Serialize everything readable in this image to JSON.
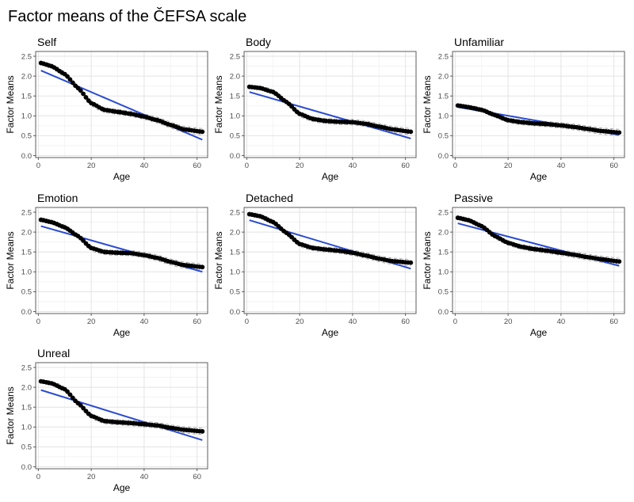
{
  "figure_title": "Factor means of the ČEFSA scale",
  "colors": {
    "trend": "#2a4bd1",
    "points": "#000000",
    "ci": "#a8a8a8",
    "grid": "#e3e3e3"
  },
  "chart_data": [
    {
      "type": "scatter",
      "title": "Self",
      "xlabel": "Age",
      "ylabel": "Factor Means",
      "xlim": [
        -1,
        64
      ],
      "ylim": [
        -0.05,
        2.62
      ],
      "xticks": [
        "0",
        "20",
        "40",
        "60"
      ],
      "yticks": [
        "0.0",
        "0.5",
        "1.0",
        "1.5",
        "2.0",
        "2.5"
      ],
      "x": [
        1,
        5,
        10,
        15,
        20,
        25,
        30,
        35,
        40,
        45,
        50,
        55,
        62
      ],
      "y": [
        2.33,
        2.25,
        2.05,
        1.7,
        1.32,
        1.15,
        1.1,
        1.05,
        0.98,
        0.89,
        0.77,
        0.66,
        0.6
      ],
      "trend": {
        "start": [
          1,
          2.14
        ],
        "end": [
          62,
          0.4
        ]
      }
    },
    {
      "type": "scatter",
      "title": "Body",
      "xlabel": "Age",
      "ylabel": "Factor Means",
      "xlim": [
        -1,
        64
      ],
      "ylim": [
        -0.05,
        2.62
      ],
      "xticks": [
        "0",
        "20",
        "40",
        "60"
      ],
      "yticks": [
        "0.0",
        "0.5",
        "1.0",
        "1.5",
        "2.0",
        "2.5"
      ],
      "x": [
        1,
        5,
        10,
        15,
        20,
        25,
        30,
        35,
        40,
        45,
        50,
        55,
        62
      ],
      "y": [
        1.73,
        1.7,
        1.6,
        1.35,
        1.05,
        0.92,
        0.87,
        0.85,
        0.84,
        0.8,
        0.73,
        0.66,
        0.6
      ],
      "trend": {
        "start": [
          1,
          1.6
        ],
        "end": [
          62,
          0.43
        ]
      }
    },
    {
      "type": "scatter",
      "title": "Unfamiliar",
      "xlabel": "Age",
      "ylabel": "Factor Means",
      "xlim": [
        -1,
        64
      ],
      "ylim": [
        -0.05,
        2.62
      ],
      "xticks": [
        "0",
        "20",
        "40",
        "60"
      ],
      "yticks": [
        "0.0",
        "0.5",
        "1.0",
        "1.5",
        "2.0",
        "2.5"
      ],
      "x": [
        1,
        5,
        10,
        15,
        20,
        25,
        30,
        35,
        40,
        45,
        50,
        55,
        62
      ],
      "y": [
        1.26,
        1.22,
        1.15,
        1.02,
        0.89,
        0.84,
        0.81,
        0.79,
        0.76,
        0.72,
        0.67,
        0.62,
        0.58
      ],
      "trend": {
        "start": [
          1,
          1.22
        ],
        "end": [
          62,
          0.52
        ]
      }
    },
    {
      "type": "scatter",
      "title": "Emotion",
      "xlabel": "Age",
      "ylabel": "Factor Means",
      "xlim": [
        -1,
        64
      ],
      "ylim": [
        -0.05,
        2.62
      ],
      "xticks": [
        "0",
        "20",
        "40",
        "60"
      ],
      "yticks": [
        "0.0",
        "0.5",
        "1.0",
        "1.5",
        "2.0",
        "2.5"
      ],
      "x": [
        1,
        5,
        10,
        15,
        20,
        25,
        30,
        35,
        40,
        45,
        50,
        55,
        62
      ],
      "y": [
        2.31,
        2.25,
        2.12,
        1.9,
        1.6,
        1.5,
        1.48,
        1.47,
        1.42,
        1.35,
        1.25,
        1.17,
        1.12
      ],
      "trend": {
        "start": [
          1,
          2.15
        ],
        "end": [
          62,
          1.0
        ]
      }
    },
    {
      "type": "scatter",
      "title": "Detached",
      "xlabel": "Age",
      "ylabel": "Factor Means",
      "xlim": [
        -1,
        64
      ],
      "ylim": [
        -0.05,
        2.62
      ],
      "xticks": [
        "0",
        "20",
        "40",
        "60"
      ],
      "yticks": [
        "0.0",
        "0.5",
        "1.0",
        "1.5",
        "2.0",
        "2.5"
      ],
      "x": [
        1,
        5,
        10,
        15,
        20,
        25,
        30,
        35,
        40,
        45,
        50,
        55,
        62
      ],
      "y": [
        2.45,
        2.4,
        2.25,
        1.98,
        1.7,
        1.6,
        1.56,
        1.53,
        1.48,
        1.41,
        1.33,
        1.27,
        1.23
      ],
      "trend": {
        "start": [
          1,
          2.3
        ],
        "end": [
          62,
          1.08
        ]
      }
    },
    {
      "type": "scatter",
      "title": "Passive",
      "xlabel": "Age",
      "ylabel": "Factor Means",
      "xlim": [
        -1,
        64
      ],
      "ylim": [
        -0.05,
        2.62
      ],
      "xticks": [
        "0",
        "20",
        "40",
        "60"
      ],
      "yticks": [
        "0.0",
        "0.5",
        "1.0",
        "1.5",
        "2.0",
        "2.5"
      ],
      "x": [
        1,
        5,
        10,
        15,
        20,
        25,
        30,
        35,
        40,
        45,
        50,
        55,
        62
      ],
      "y": [
        2.36,
        2.3,
        2.15,
        1.9,
        1.73,
        1.63,
        1.57,
        1.53,
        1.48,
        1.43,
        1.37,
        1.32,
        1.26
      ],
      "trend": {
        "start": [
          1,
          2.22
        ],
        "end": [
          62,
          1.15
        ]
      }
    },
    {
      "type": "scatter",
      "title": "Unreal",
      "xlabel": "Age",
      "ylabel": "Factor Means",
      "xlim": [
        -1,
        64
      ],
      "ylim": [
        -0.05,
        2.62
      ],
      "xticks": [
        "0",
        "20",
        "40",
        "60"
      ],
      "yticks": [
        "0.0",
        "0.5",
        "1.0",
        "1.5",
        "2.0",
        "2.5"
      ],
      "x": [
        1,
        5,
        10,
        15,
        20,
        25,
        30,
        35,
        40,
        45,
        50,
        55,
        62
      ],
      "y": [
        2.15,
        2.1,
        1.95,
        1.6,
        1.28,
        1.15,
        1.12,
        1.1,
        1.07,
        1.04,
        0.98,
        0.93,
        0.89
      ],
      "trend": {
        "start": [
          1,
          1.93
        ],
        "end": [
          62,
          0.67
        ]
      }
    }
  ]
}
